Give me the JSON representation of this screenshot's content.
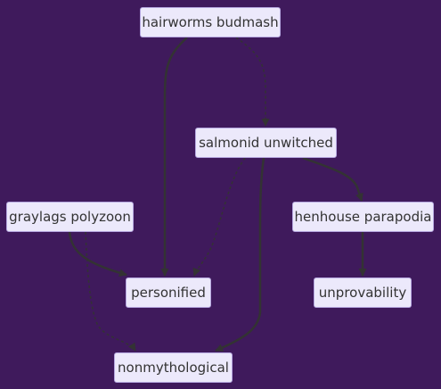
{
  "colors": {
    "background": "#3f1a5c",
    "node_fill": "#ece9fb",
    "node_border": "#b6a8e0",
    "edge": "#333333",
    "text": "#333333"
  },
  "nodes": [
    {
      "id": "hairworms-budmash",
      "label": "hairworms budmash"
    },
    {
      "id": "salmonid-unwitched",
      "label": "salmonid unwitched"
    },
    {
      "id": "graylags-polyzoon",
      "label": "graylags polyzoon"
    },
    {
      "id": "henhouse-parapodia",
      "label": "henhouse parapodia"
    },
    {
      "id": "personified",
      "label": "personified"
    },
    {
      "id": "unprovability",
      "label": "unprovability"
    },
    {
      "id": "nonmythological",
      "label": "nonmythological"
    }
  ],
  "edges": [
    {
      "from": "hairworms-budmash",
      "to": "personified",
      "style": "thick"
    },
    {
      "from": "hairworms-budmash",
      "to": "salmonid-unwitched",
      "style": "dotted"
    },
    {
      "from": "salmonid-unwitched",
      "to": "personified",
      "style": "dotted"
    },
    {
      "from": "salmonid-unwitched",
      "to": "nonmythological",
      "style": "thick"
    },
    {
      "from": "salmonid-unwitched",
      "to": "henhouse-parapodia",
      "style": "thick"
    },
    {
      "from": "graylags-polyzoon",
      "to": "personified",
      "style": "thick"
    },
    {
      "from": "graylags-polyzoon",
      "to": "nonmythological",
      "style": "dotted"
    },
    {
      "from": "henhouse-parapodia",
      "to": "unprovability",
      "style": "thick"
    }
  ]
}
